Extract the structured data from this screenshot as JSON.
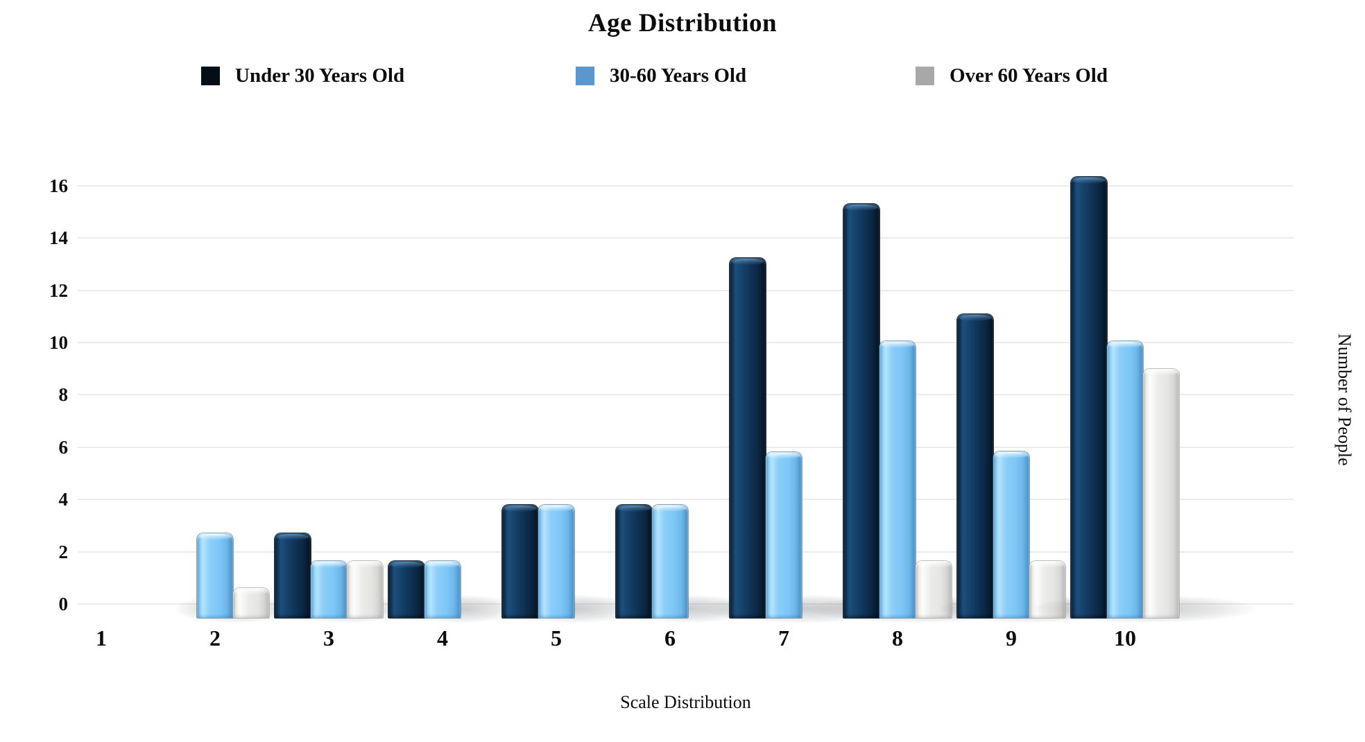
{
  "title": "Age Distribution",
  "chart_data": {
    "type": "bar",
    "categories": [
      "1",
      "2",
      "3",
      "4",
      "5",
      "6",
      "7",
      "8",
      "9",
      "10"
    ],
    "series": [
      {
        "name": "Under 30 Years Old",
        "swatch": "#050d16",
        "color": "#12395e",
        "values": [
          0,
          0,
          2.7,
          1.65,
          3.8,
          3.8,
          13.25,
          15.3,
          11.1,
          16.35
        ]
      },
      {
        "name": "30-60 Years Old",
        "swatch": "#5b96cc",
        "color": "#7cc7f8",
        "values": [
          0,
          2.7,
          1.65,
          1.65,
          3.8,
          3.8,
          5.8,
          10.05,
          5.85,
          10.05
        ]
      },
      {
        "name": "Over 60 Years Old",
        "swatch": "#a8a8a8",
        "color": "#e9e9e7",
        "values": [
          0,
          0.6,
          1.65,
          0,
          0,
          0,
          0,
          1.65,
          1.65,
          9
        ]
      }
    ],
    "title": "Age Distribution",
    "xlabel": "Scale Distribution",
    "ylabel": "Number of People",
    "ylim": [
      0,
      16
    ],
    "ytick_step": 2,
    "grid": "horizontal",
    "legend_position": "top",
    "gridline_color": "#ebebeb",
    "background_color": "#ffffff"
  }
}
